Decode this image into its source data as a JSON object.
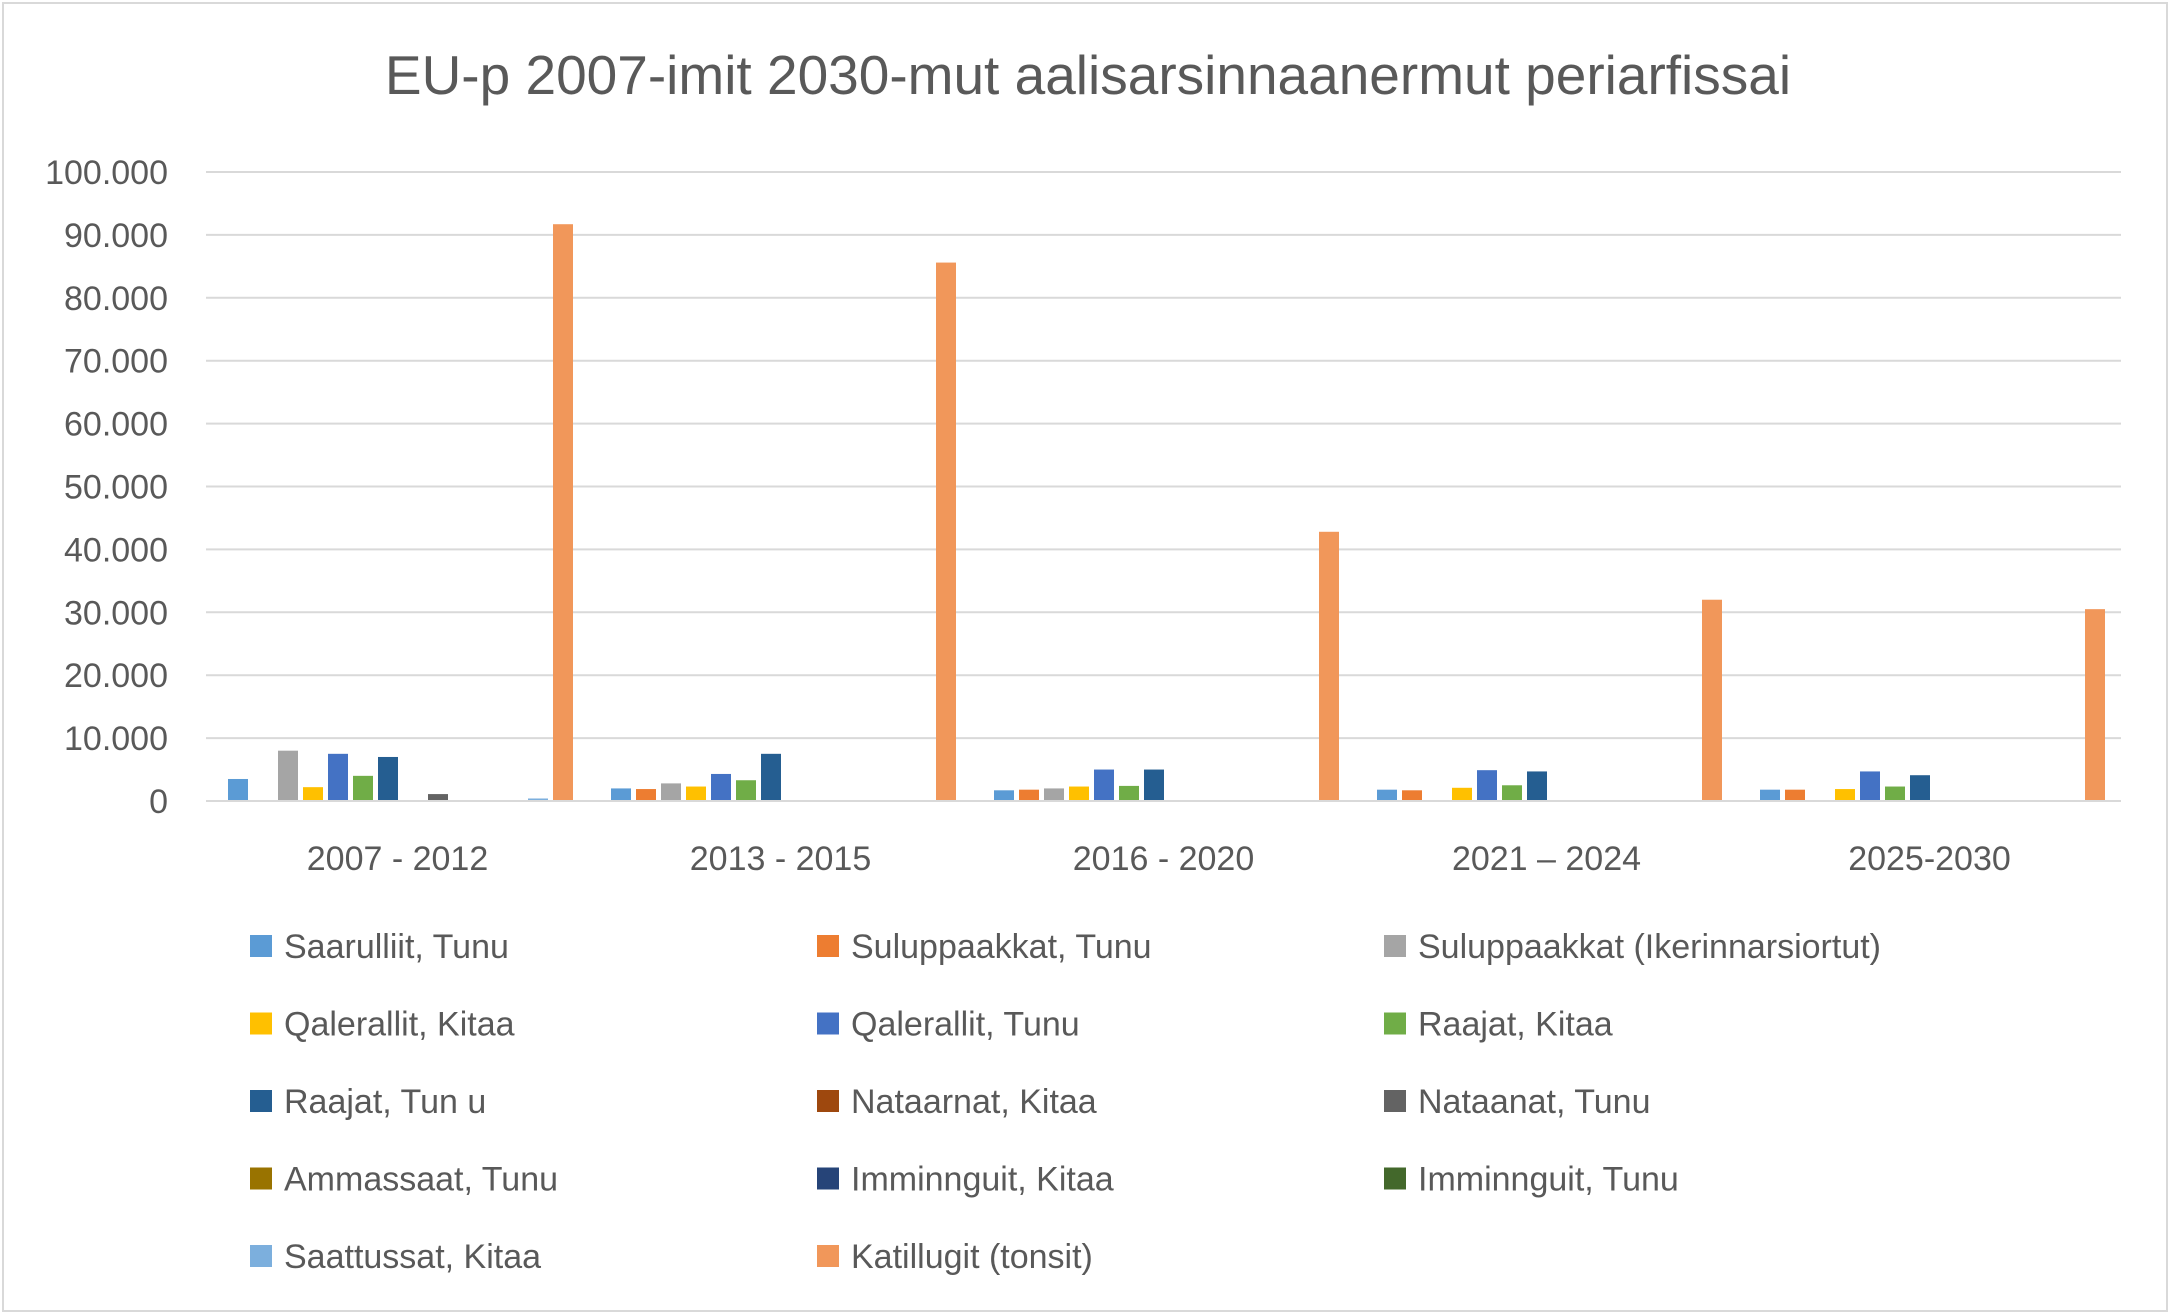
{
  "chart_data": {
    "type": "bar",
    "title": "EU-p 2007-imit 2030-mut aalisarsinnaanermut periarfissai",
    "xlabel": "",
    "ylabel": "",
    "ylim": [
      0,
      100000
    ],
    "grid": true,
    "legend_position": "bottom",
    "y_ticks": [
      "0",
      "10.000",
      "20.000",
      "30.000",
      "40.000",
      "50.000",
      "60.000",
      "70.000",
      "80.000",
      "90.000",
      "100.000"
    ],
    "y_tick_values": [
      0,
      10000,
      20000,
      30000,
      40000,
      50000,
      60000,
      70000,
      80000,
      90000,
      100000
    ],
    "categories": [
      "2007 - 2012",
      "2013 - 2015",
      "2016 - 2020",
      "2021 – 2024",
      "2025-2030"
    ],
    "series": [
      {
        "name": "Saarulliit, Tunu",
        "color": "#5b9bd5",
        "values": [
          3500,
          2000,
          1700,
          1800,
          1800
        ]
      },
      {
        "name": "Suluppaakkat, Tunu",
        "color": "#ed7d31",
        "values": [
          0,
          1900,
          1800,
          1700,
          1800
        ]
      },
      {
        "name": "Suluppaakkat (Ikerinnarsiortut)",
        "color": "#a5a5a5",
        "values": [
          8000,
          2800,
          2000,
          0,
          0
        ]
      },
      {
        "name": "Qalerallit, Kitaa",
        "color": "#ffc000",
        "values": [
          2200,
          2300,
          2300,
          2100,
          1900
        ]
      },
      {
        "name": "Qalerallit, Tunu",
        "color": "#4472c4",
        "values": [
          7500,
          4300,
          5000,
          4900,
          4700
        ]
      },
      {
        "name": "Raajat, Kitaa",
        "color": "#70ad47",
        "values": [
          4000,
          3300,
          2400,
          2500,
          2300
        ]
      },
      {
        "name": "Raajat, Tun u",
        "color": "#255e91",
        "values": [
          7000,
          7500,
          5000,
          4700,
          4100
        ]
      },
      {
        "name": "Nataarnat, Kitaa",
        "color": "#9e480e",
        "values": [
          0,
          0,
          0,
          0,
          0
        ]
      },
      {
        "name": "Nataanat, Tunu",
        "color": "#636363",
        "values": [
          1100,
          0,
          0,
          0,
          0
        ]
      },
      {
        "name": "Ammassaat, Tunu",
        "color": "#997300",
        "values": [
          0,
          0,
          0,
          0,
          0
        ]
      },
      {
        "name": "Imminnguit, Kitaa",
        "color": "#264478",
        "values": [
          0,
          0,
          0,
          0,
          0
        ]
      },
      {
        "name": "Imminnguit, Tunu",
        "color": "#43682b",
        "values": [
          0,
          0,
          0,
          0,
          0
        ]
      },
      {
        "name": "Saattussat, Kitaa",
        "color": "#7cafdd",
        "values": [
          400,
          0,
          0,
          0,
          0
        ]
      },
      {
        "name": "Katillugit (tonsit)",
        "color": "#f1975a",
        "values": [
          91700,
          85600,
          42800,
          32000,
          30500
        ]
      }
    ]
  }
}
